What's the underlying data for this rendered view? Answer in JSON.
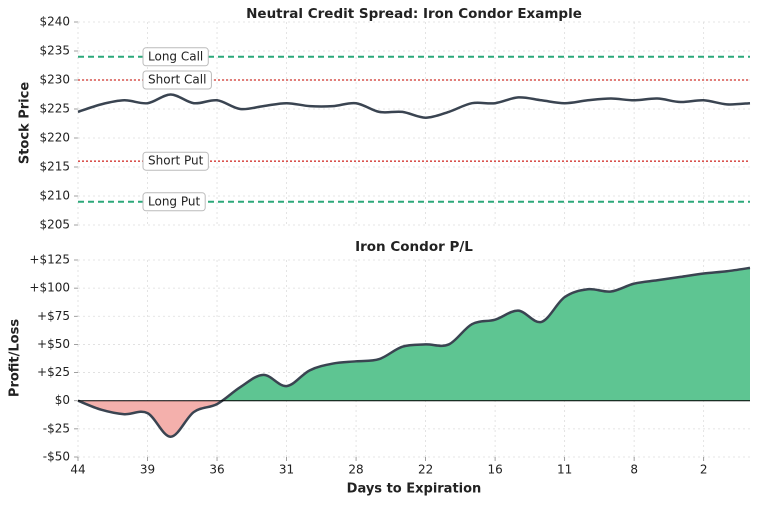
{
  "chart_data": [
    {
      "type": "line",
      "title": "Neutral Credit Spread: Iron Condor Example",
      "y_label": "Stock Price",
      "x": [
        0,
        1,
        2,
        3,
        4,
        5,
        6,
        7,
        8,
        9,
        10,
        11,
        12,
        13,
        14,
        15,
        16,
        17,
        18,
        19,
        20,
        21,
        22,
        23,
        24,
        25,
        26,
        27,
        28,
        29
      ],
      "series": [
        {
          "color": "#3a4451",
          "values": [
            224.5,
            225.8,
            226.5,
            226,
            227.5,
            226,
            226.5,
            225,
            225.5,
            226,
            225.5,
            225.5,
            226,
            224.5,
            224.5,
            223.5,
            224.5,
            226,
            226,
            227,
            226.5,
            226,
            226.5,
            226.8,
            226.5,
            226.8,
            226.2,
            226.5,
            225.8,
            226
          ]
        }
      ],
      "lines": [
        {
          "name": "Long Call",
          "value": 234,
          "color": "#2ca87a",
          "style": "dashed"
        },
        {
          "name": "Short Call",
          "value": 230,
          "color": "#d9534f",
          "style": "dotted"
        },
        {
          "name": "Short Put",
          "value": 216,
          "color": "#d9534f",
          "style": "dotted"
        },
        {
          "name": "Long Put",
          "value": 209,
          "color": "#2ca87a",
          "style": "dashed"
        }
      ],
      "xlim": [
        0,
        29
      ],
      "ylim": [
        205,
        240
      ],
      "yticks": [
        {
          "value": 205,
          "label": "$205"
        },
        {
          "value": 210,
          "label": "$210"
        },
        {
          "value": 215,
          "label": "$215"
        },
        {
          "value": 220,
          "label": "$220"
        },
        {
          "value": 225,
          "label": "$225"
        },
        {
          "value": 230,
          "label": "$230"
        },
        {
          "value": 235,
          "label": "$235"
        },
        {
          "value": 240,
          "label": "$240"
        }
      ],
      "grid": true
    },
    {
      "type": "area",
      "title": "Iron Condor P/L",
      "x_label": "Days to Expiration",
      "y_label": "Profit/Loss",
      "x": [
        0,
        1,
        2,
        3,
        4,
        5,
        6,
        7,
        8,
        9,
        10,
        11,
        12,
        13,
        14,
        15,
        16,
        17,
        18,
        19,
        20,
        21,
        22,
        23,
        24,
        25,
        26,
        27,
        28,
        29
      ],
      "series": [
        {
          "color": "#3a4451",
          "values": [
            0,
            -8,
            -12,
            -11,
            -32,
            -10,
            -3,
            12,
            23,
            13,
            27,
            33,
            35,
            37,
            48,
            50,
            50,
            68,
            72,
            80,
            70,
            92,
            99,
            97,
            104,
            107,
            110,
            113,
            115,
            118
          ]
        }
      ],
      "positive_color": "#5ec592",
      "negative_color": "#f4b0ac",
      "xlim": [
        0,
        29
      ],
      "xticks": [
        {
          "value": 0,
          "label": "44"
        },
        {
          "value": 3,
          "label": "39"
        },
        {
          "value": 6,
          "label": "36"
        },
        {
          "value": 9,
          "label": "31"
        },
        {
          "value": 12,
          "label": "28"
        },
        {
          "value": 15,
          "label": "22"
        },
        {
          "value": 18,
          "label": "16"
        },
        {
          "value": 21,
          "label": "11"
        },
        {
          "value": 24,
          "label": "8"
        },
        {
          "value": 27,
          "label": "2"
        }
      ],
      "ylim": [
        -50,
        125
      ],
      "yticks": [
        {
          "value": -50,
          "label": "-$50"
        },
        {
          "value": -25,
          "label": "-$25"
        },
        {
          "value": 0,
          "label": "$0"
        },
        {
          "value": 25,
          "label": "+$25"
        },
        {
          "value": 50,
          "label": "+$50"
        },
        {
          "value": 75,
          "label": "+$75"
        },
        {
          "value": 100,
          "label": "+$100"
        },
        {
          "value": 125,
          "label": "+$125"
        }
      ],
      "grid": true,
      "zero_line": true
    }
  ]
}
